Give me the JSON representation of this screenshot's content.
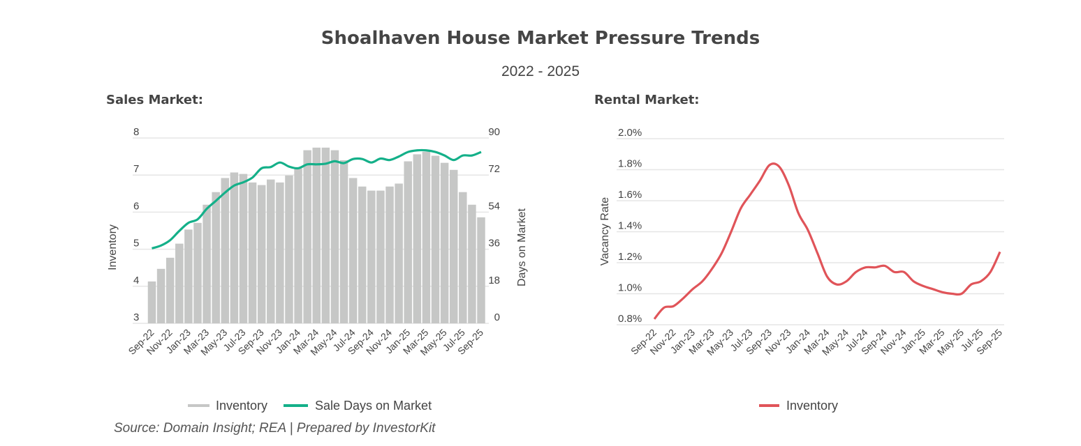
{
  "title": "Shoalhaven House Market Pressure Trends",
  "subtitle": "2022 - 2025",
  "source": "Source: Domain Insight; REA | Prepared by InvestorKit",
  "colors": {
    "inventory_bar": "#c6c7c6",
    "days_line": "#14b089",
    "vacancy_line": "#e05459",
    "grid": "#e6e6e6"
  },
  "chart_data": [
    {
      "type": "bar+line",
      "section_title": "Sales Market:",
      "ylabel": "Inventory",
      "y2label": "Days on Market",
      "ylim": [
        3,
        8
      ],
      "yticks": [
        "3",
        "4",
        "5",
        "6",
        "7",
        "8"
      ],
      "y2lim": [
        0,
        90
      ],
      "y2ticks": [
        "0",
        "18",
        "36",
        "54",
        "72",
        "90"
      ],
      "grid": true,
      "legend_placement": "bottom",
      "categories": [
        "Sep-22",
        "Oct-22",
        "Nov-22",
        "Dec-22",
        "Jan-23",
        "Feb-23",
        "Mar-23",
        "Apr-23",
        "May-23",
        "Jun-23",
        "Jul-23",
        "Aug-23",
        "Sep-23",
        "Oct-23",
        "Nov-23",
        "Dec-23",
        "Jan-24",
        "Feb-24",
        "Mar-24",
        "Apr-24",
        "May-24",
        "Jun-24",
        "Jul-24",
        "Aug-24",
        "Sep-24",
        "Oct-24",
        "Nov-24",
        "Dec-24",
        "Jan-25",
        "Feb-25",
        "Mar-25",
        "Apr-25",
        "May-25",
        "Jun-25",
        "Jul-25",
        "Aug-25",
        "Sep-25"
      ],
      "xtick_labels": [
        "Sep-22",
        "Nov-22",
        "Jan-23",
        "Mar-23",
        "May-23",
        "Jul-23",
        "Sep-23",
        "Nov-23",
        "Jan-24",
        "Mar-24",
        "May-24",
        "Jul-24",
        "Sep-24",
        "Nov-24",
        "Jan-25",
        "Mar-25",
        "May-25",
        "Jul-25",
        "Sep-25"
      ],
      "series": [
        {
          "name": "Inventory",
          "type": "bar",
          "axis": "left",
          "values": [
            4.13,
            4.47,
            4.77,
            5.15,
            5.53,
            5.71,
            6.2,
            6.54,
            6.92,
            7.07,
            7.03,
            6.8,
            6.73,
            6.88,
            6.8,
            6.99,
            7.18,
            7.67,
            7.74,
            7.74,
            7.67,
            7.4,
            6.92,
            6.69,
            6.58,
            6.58,
            6.69,
            6.77,
            7.37,
            7.56,
            7.63,
            7.52,
            7.33,
            7.14,
            6.54,
            6.2,
            5.86
          ]
        },
        {
          "name": "Sale Days on Market",
          "type": "line",
          "axis": "right",
          "values": [
            36.4,
            37.8,
            40.4,
            44.9,
            48.8,
            50.5,
            55.6,
            59.5,
            63.5,
            66.9,
            68.5,
            70.8,
            75.3,
            75.9,
            78.1,
            76.1,
            75.3,
            77.2,
            77.2,
            77.5,
            78.7,
            77.8,
            79.8,
            79.8,
            78.1,
            80,
            79.3,
            81,
            83.2,
            84,
            84,
            83.2,
            81.5,
            79.3,
            81.5,
            81.5,
            83.2
          ]
        }
      ]
    },
    {
      "type": "line",
      "section_title": "Rental Market:",
      "ylabel": "Vacancy Rate",
      "ylim": [
        0.8,
        2.0
      ],
      "yticks": [
        "0.8%",
        "1.0%",
        "1.2%",
        "1.4%",
        "1.6%",
        "1.8%",
        "2.0%"
      ],
      "grid": true,
      "legend_placement": "bottom",
      "categories": [
        "Sep-22",
        "Oct-22",
        "Nov-22",
        "Dec-22",
        "Jan-23",
        "Feb-23",
        "Mar-23",
        "Apr-23",
        "May-23",
        "Jun-23",
        "Jul-23",
        "Aug-23",
        "Sep-23",
        "Oct-23",
        "Nov-23",
        "Dec-23",
        "Jan-24",
        "Feb-24",
        "Mar-24",
        "Apr-24",
        "May-24",
        "Jun-24",
        "Jul-24",
        "Aug-24",
        "Sep-24",
        "Oct-24",
        "Nov-24",
        "Dec-24",
        "Jan-25",
        "Feb-25",
        "Mar-25",
        "Apr-25",
        "May-25",
        "Jun-25",
        "Jul-25",
        "Aug-25",
        "Sep-25"
      ],
      "xtick_labels": [
        "Sep-22",
        "Nov-22",
        "Jan-23",
        "Mar-23",
        "May-23",
        "Jul-23",
        "Sep-23",
        "Nov-23",
        "Jan-24",
        "Mar-24",
        "May-24",
        "Jul-24",
        "Sep-24",
        "Nov-24",
        "Jan-25",
        "Mar-25",
        "May-25",
        "Jul-25",
        "Sep-25"
      ],
      "series": [
        {
          "name": "Inventory",
          "type": "line",
          "values": [
            0.837,
            0.91,
            0.92,
            0.97,
            1.03,
            1.08,
            1.16,
            1.26,
            1.4,
            1.55,
            1.64,
            1.73,
            1.83,
            1.82,
            1.7,
            1.52,
            1.41,
            1.26,
            1.11,
            1.06,
            1.08,
            1.14,
            1.17,
            1.17,
            1.18,
            1.14,
            1.14,
            1.08,
            1.05,
            1.03,
            1.01,
            1.0,
            1.0,
            1.06,
            1.08,
            1.14,
            1.27
          ]
        }
      ]
    }
  ]
}
